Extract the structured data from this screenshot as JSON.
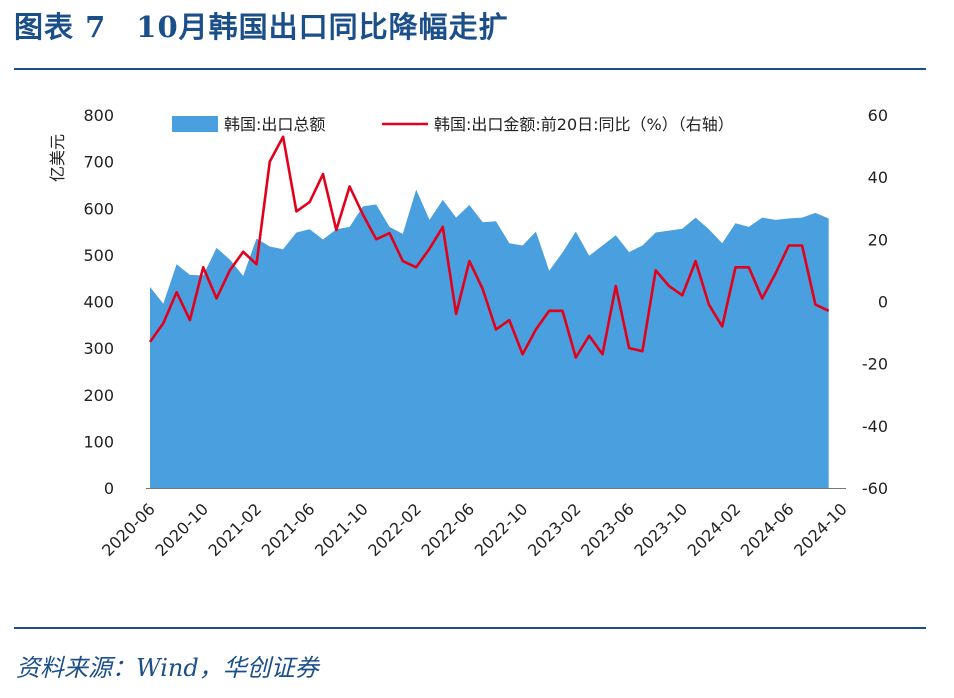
{
  "figure_title": "图表 7　10月韩国出口同比降幅走扩",
  "source": "资料来源：Wind，华创证券",
  "colors": {
    "area": "#4a9fde",
    "line": "#e3001b",
    "rule": "#1b4f8a"
  },
  "chart_data": {
    "type": "area+line",
    "x_tick_labels": [
      "2020-06",
      "2020-10",
      "2021-02",
      "2021-06",
      "2021-10",
      "2022-02",
      "2022-06",
      "2022-10",
      "2023-02",
      "2023-06",
      "2023-10",
      "2024-02",
      "2024-06",
      "2024-10"
    ],
    "y_left": {
      "label": "亿美元",
      "range": [
        0,
        800
      ],
      "ticks": [
        0,
        100,
        200,
        300,
        400,
        500,
        600,
        700,
        800
      ]
    },
    "y_right": {
      "range": [
        -60,
        60
      ],
      "ticks": [
        -60,
        -40,
        -20,
        0,
        20,
        40,
        60
      ]
    },
    "legend": [
      "韩国:出口总额",
      "韩国:出口金额:前20日:同比（%）（右轴）"
    ],
    "series": [
      {
        "name": "韩国:出口总额",
        "type": "area",
        "axis": "left",
        "points": [
          [
            0,
            431
          ],
          [
            1,
            395
          ],
          [
            2,
            480
          ],
          [
            3,
            457
          ],
          [
            4,
            456
          ],
          [
            5,
            515
          ],
          [
            6,
            490
          ],
          [
            7,
            455
          ],
          [
            8,
            535
          ],
          [
            9,
            518
          ],
          [
            10,
            512
          ],
          [
            11,
            548
          ],
          [
            12,
            555
          ],
          [
            13,
            533
          ],
          [
            14,
            555
          ],
          [
            15,
            560
          ],
          [
            16,
            604
          ],
          [
            17,
            608
          ],
          [
            18,
            560
          ],
          [
            19,
            545
          ],
          [
            20,
            640
          ],
          [
            21,
            575
          ],
          [
            22,
            618
          ],
          [
            23,
            580
          ],
          [
            24,
            607
          ],
          [
            25,
            570
          ],
          [
            26,
            572
          ],
          [
            27,
            525
          ],
          [
            28,
            520
          ],
          [
            29,
            550
          ],
          [
            30,
            466
          ],
          [
            31,
            505
          ],
          [
            32,
            550
          ],
          [
            33,
            498
          ],
          [
            34,
            520
          ],
          [
            35,
            542
          ],
          [
            36,
            506
          ],
          [
            37,
            520
          ],
          [
            38,
            548
          ],
          [
            39,
            552
          ],
          [
            40,
            556
          ],
          [
            41,
            580
          ],
          [
            42,
            555
          ],
          [
            43,
            525
          ],
          [
            44,
            568
          ],
          [
            45,
            560
          ],
          [
            46,
            580
          ],
          [
            47,
            575
          ],
          [
            48,
            578
          ],
          [
            49,
            580
          ],
          [
            50,
            590
          ],
          [
            51,
            578
          ]
        ]
      },
      {
        "name": "韩国:出口金额:前20日:同比（%）",
        "type": "line",
        "axis": "right",
        "points": [
          [
            0,
            -13
          ],
          [
            1,
            -7
          ],
          [
            2,
            3
          ],
          [
            3,
            -6
          ],
          [
            4,
            11
          ],
          [
            5,
            1
          ],
          [
            6,
            10
          ],
          [
            7,
            16
          ],
          [
            8,
            12
          ],
          [
            9,
            45
          ],
          [
            10,
            53
          ],
          [
            11,
            29
          ],
          [
            12,
            32
          ],
          [
            13,
            41
          ],
          [
            14,
            23
          ],
          [
            15,
            37
          ],
          [
            16,
            28
          ],
          [
            17,
            20
          ],
          [
            18,
            22
          ],
          [
            19,
            13
          ],
          [
            20,
            11
          ],
          [
            21,
            17
          ],
          [
            22,
            24
          ],
          [
            23,
            -4
          ],
          [
            24,
            13
          ],
          [
            25,
            4
          ],
          [
            26,
            -9
          ],
          [
            27,
            -6
          ],
          [
            28,
            -17
          ],
          [
            29,
            -9
          ],
          [
            30,
            -3
          ],
          [
            31,
            -3
          ],
          [
            32,
            -18
          ],
          [
            33,
            -11
          ],
          [
            34,
            -17
          ],
          [
            35,
            5
          ],
          [
            36,
            -15
          ],
          [
            37,
            -16
          ],
          [
            38,
            10
          ],
          [
            39,
            5
          ],
          [
            40,
            2
          ],
          [
            41,
            13
          ],
          [
            42,
            -1
          ],
          [
            43,
            -8
          ],
          [
            44,
            11
          ],
          [
            45,
            11
          ],
          [
            46,
            1
          ],
          [
            47,
            9
          ],
          [
            48,
            18
          ],
          [
            49,
            18
          ],
          [
            50,
            -1
          ],
          [
            51,
            -3
          ]
        ]
      }
    ],
    "x_tick_index": [
      0,
      4,
      8,
      12,
      16,
      20,
      24,
      28,
      32,
      36,
      40,
      44,
      48,
      52
    ]
  }
}
